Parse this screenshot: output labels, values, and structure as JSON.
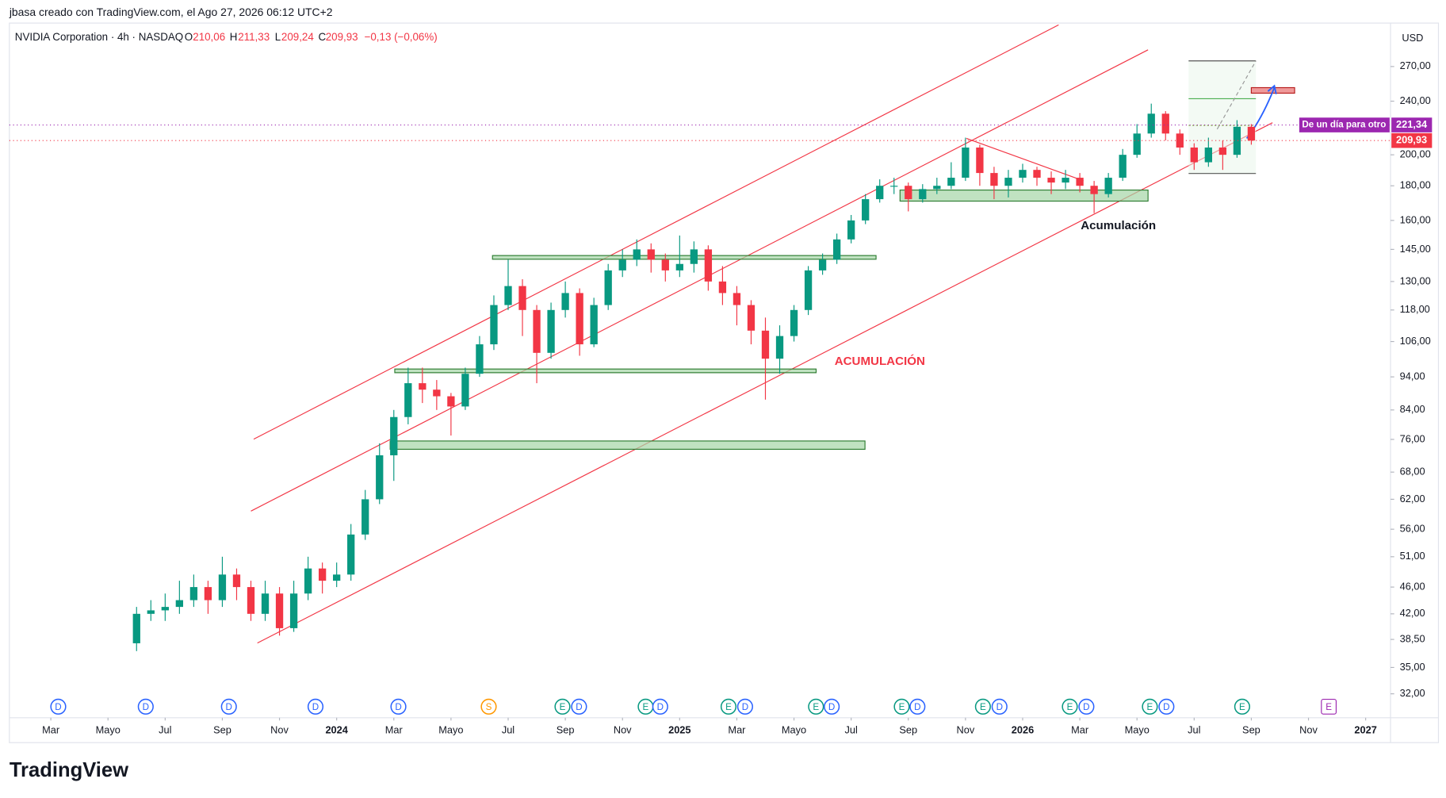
{
  "header": {
    "credit": "jbasa creado con TradingView.com, el Ago 27, 2026 06:12 UTC+2",
    "logo": "TradingView"
  },
  "chart_data": {
    "type": "candlestick",
    "log_scale": true,
    "legend": {
      "symbol": "NVIDIA Corporation · 4h · NASDAQ",
      "o_label": "O",
      "o": "210,06",
      "h_label": "H",
      "h": "211,33",
      "l_label": "L",
      "l": "209,24",
      "c_label": "C",
      "c": "209,93",
      "change": "−0,13 (−0,06%)"
    },
    "currency": "USD",
    "up_color": "#089981",
    "down_color": "#f23645",
    "annotations": [
      {
        "text": "ACUMULACIÓN",
        "color": "#f23645"
      },
      {
        "text": "Acumulación",
        "color": "#131722"
      }
    ],
    "price_lines": [
      {
        "name": "De un día para otro",
        "value": 221.34,
        "label": "221,34",
        "color": "#9c27b0"
      },
      {
        "value": 209.93,
        "label": "209,93",
        "color": "#f23645"
      }
    ],
    "xlim": [
      -1.45,
      46.87
    ],
    "xticks": [
      {
        "value": 0,
        "label": "Mar"
      },
      {
        "value": 2,
        "label": "Mayo"
      },
      {
        "value": 4,
        "label": "Jul"
      },
      {
        "value": 6,
        "label": "Sep"
      },
      {
        "value": 8,
        "label": "Nov"
      },
      {
        "value": 10,
        "label": "2024"
      },
      {
        "value": 12,
        "label": "Mar"
      },
      {
        "value": 14,
        "label": "Mayo"
      },
      {
        "value": 16,
        "label": "Jul"
      },
      {
        "value": 18,
        "label": "Sep"
      },
      {
        "value": 20,
        "label": "Nov"
      },
      {
        "value": 22,
        "label": "2025"
      },
      {
        "value": 24,
        "label": "Mar"
      },
      {
        "value": 26,
        "label": "Mayo"
      },
      {
        "value": 28,
        "label": "Jul"
      },
      {
        "value": 30,
        "label": "Sep"
      },
      {
        "value": 32,
        "label": "Nov"
      },
      {
        "value": 34,
        "label": "2026"
      },
      {
        "value": 36,
        "label": "Mar"
      },
      {
        "value": 38,
        "label": "Mayo"
      },
      {
        "value": 40,
        "label": "Jul"
      },
      {
        "value": 42,
        "label": "Sep"
      },
      {
        "value": 44,
        "label": "Nov"
      },
      {
        "value": 46,
        "label": "2027"
      }
    ],
    "ylim": [
      29.5,
      313
    ],
    "yticks": [
      {
        "value": 32,
        "label": "32,00"
      },
      {
        "value": 35,
        "label": "35,00"
      },
      {
        "value": 38.5,
        "label": "38,50"
      },
      {
        "value": 42,
        "label": "42,00"
      },
      {
        "value": 46,
        "label": "46,00"
      },
      {
        "value": 51,
        "label": "51,00"
      },
      {
        "value": 56,
        "label": "56,00"
      },
      {
        "value": 62,
        "label": "62,00"
      },
      {
        "value": 68,
        "label": "68,00"
      },
      {
        "value": 76,
        "label": "76,00"
      },
      {
        "value": 84,
        "label": "84,00"
      },
      {
        "value": 94,
        "label": "94,00"
      },
      {
        "value": 106,
        "label": "106,00"
      },
      {
        "value": 118,
        "label": "118,00"
      },
      {
        "value": 130,
        "label": "130,00"
      },
      {
        "value": 145,
        "label": "145,00"
      },
      {
        "value": 160,
        "label": "160,00"
      },
      {
        "value": 180,
        "label": "180,00"
      },
      {
        "value": 200,
        "label": "200,00"
      },
      {
        "value": 240,
        "label": "240,00"
      },
      {
        "value": 270,
        "label": "270,00"
      }
    ],
    "events": [
      {
        "label": "D",
        "x": 0.26
      },
      {
        "label": "D",
        "x": 3.32
      },
      {
        "label": "D",
        "x": 6.23
      },
      {
        "label": "D",
        "x": 9.26
      },
      {
        "label": "D",
        "x": 12.16
      },
      {
        "label": "S",
        "x": 15.32
      },
      {
        "label": "E",
        "x": 17.9
      },
      {
        "label": "D",
        "x": 18.48
      },
      {
        "label": "E",
        "x": 20.81
      },
      {
        "label": "D",
        "x": 21.32
      },
      {
        "label": "E",
        "x": 23.71
      },
      {
        "label": "D",
        "x": 24.29
      },
      {
        "label": "E",
        "x": 26.77
      },
      {
        "label": "D",
        "x": 27.32
      },
      {
        "label": "E",
        "x": 29.77
      },
      {
        "label": "D",
        "x": 30.32
      },
      {
        "label": "E",
        "x": 32.61
      },
      {
        "label": "D",
        "x": 33.19
      },
      {
        "label": "E",
        "x": 35.65
      },
      {
        "label": "D",
        "x": 36.23
      },
      {
        "label": "E",
        "x": 38.45
      },
      {
        "label": "D",
        "x": 39.03
      },
      {
        "label": "E",
        "x": 41.68
      },
      {
        "label": "E",
        "x": 44.71
      }
    ],
    "x": [
      3,
      3.5,
      4,
      4.5,
      5,
      5.5,
      6,
      6.5,
      7,
      7.5,
      8,
      8.5,
      9,
      9.5,
      10,
      10.5,
      11,
      11.5,
      12,
      12.5,
      13,
      13.5,
      14,
      14.5,
      15,
      15.5,
      16,
      16.5,
      17,
      17.5,
      18,
      18.5,
      19,
      19.5,
      20,
      20.5,
      21,
      21.5,
      22,
      22.5,
      23,
      23.5,
      24,
      24.5,
      25,
      25.5,
      26,
      26.5,
      27,
      27.5,
      28,
      28.5,
      29,
      29.5,
      30,
      30.5,
      31,
      31.5,
      32,
      32.5,
      33,
      33.5,
      34,
      34.5,
      35,
      35.5,
      36,
      36.5,
      37,
      37.5,
      38,
      38.5,
      39,
      39.5,
      40,
      40.5,
      41,
      41.5,
      42
    ],
    "open": [
      38,
      42,
      42.5,
      43,
      44,
      46,
      44,
      48,
      46,
      42,
      45,
      40,
      45,
      49,
      47,
      48,
      55,
      62,
      72,
      82,
      92,
      90,
      88,
      85,
      95,
      105,
      120,
      128,
      118,
      102,
      118,
      125,
      105,
      120,
      135,
      140,
      145,
      140,
      135,
      138,
      145,
      130,
      125,
      120,
      110,
      100,
      108,
      118,
      135,
      140,
      150,
      160,
      172,
      180,
      180,
      172,
      178,
      180,
      185,
      205,
      188,
      180,
      185,
      190,
      185,
      182,
      185,
      180,
      175,
      185,
      200,
      215,
      230,
      215,
      205,
      195,
      205,
      200,
      220
    ],
    "high": [
      43,
      44,
      45,
      47,
      48,
      47,
      51,
      49,
      47,
      47,
      46,
      47,
      51,
      50,
      50,
      57,
      64,
      75,
      84,
      97,
      97,
      93,
      89,
      97,
      108,
      124,
      140,
      131,
      120,
      121,
      130,
      127,
      123,
      138,
      145,
      150,
      148,
      143,
      152,
      149,
      147,
      137,
      128,
      122,
      115,
      112,
      120,
      137,
      143,
      153,
      163,
      175,
      184,
      185,
      182,
      181,
      185,
      195,
      212,
      207,
      192,
      190,
      194,
      192,
      189,
      190,
      188,
      183,
      188,
      204,
      222,
      238,
      232,
      218,
      208,
      212,
      210,
      225,
      222
    ],
    "low": [
      37,
      41,
      41,
      42,
      43,
      42,
      43,
      44,
      41,
      41,
      39,
      39.5,
      44,
      45,
      46,
      47,
      54,
      61,
      66,
      80,
      86,
      84,
      77,
      84,
      94,
      103,
      118,
      108,
      92,
      100,
      115,
      101,
      104,
      118,
      132,
      137,
      134,
      130,
      132,
      134,
      126,
      120,
      112,
      105,
      87,
      95,
      106,
      116,
      133,
      138,
      148,
      158,
      170,
      175,
      165,
      170,
      175,
      178,
      183,
      180,
      172,
      173,
      182,
      180,
      175,
      178,
      176,
      164,
      173,
      183,
      198,
      212,
      210,
      200,
      190,
      192,
      190,
      198,
      207
    ],
    "close": [
      42,
      42.5,
      43,
      44,
      46,
      44,
      48,
      46,
      42,
      45,
      40,
      45,
      49,
      47,
      48,
      55,
      62,
      72,
      82,
      92,
      90,
      88,
      85,
      95,
      105,
      120,
      128,
      118,
      102,
      118,
      125,
      105,
      120,
      135,
      140,
      145,
      140,
      135,
      138,
      145,
      130,
      125,
      120,
      110,
      100,
      108,
      118,
      135,
      140,
      150,
      160,
      172,
      180,
      180,
      172,
      178,
      180,
      185,
      205,
      188,
      180,
      185,
      190,
      185,
      182,
      185,
      180,
      175,
      185,
      200,
      215,
      230,
      215,
      205,
      195,
      205,
      200,
      220,
      209.93
    ]
  }
}
